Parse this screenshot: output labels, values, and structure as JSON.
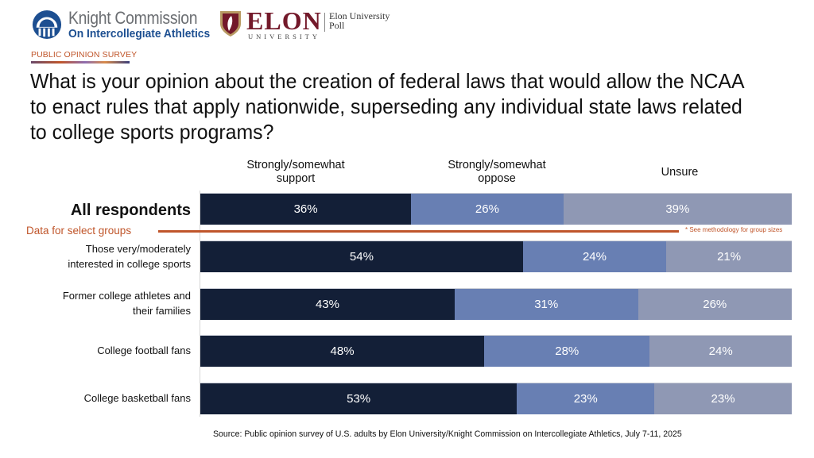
{
  "header": {
    "knight_logo": {
      "icon": "capitol-dome-icon",
      "name": "Knight Commission",
      "subtitle": "On Intercollegiate Athletics"
    },
    "elon_logo": {
      "icon": "elon-shield-icon",
      "wordmark": "ELON",
      "sub": "UNIVERSITY",
      "poll_line1": "Elon University",
      "poll_line2": "Poll"
    },
    "kicker": "PUBLIC OPINION SURVEY"
  },
  "colors": {
    "support": "#131f37",
    "oppose": "#687fb3",
    "unsure": "#8f98b4",
    "accent": "#c0562b"
  },
  "select_groups_label": "Data for select groups",
  "methodology_note": "* See methodology for group sizes",
  "source": "Source: Public opinion survey of U.S. adults by Elon University/Knight Commission on Intercollegiate Athletics, July 7-11, 2025",
  "chart_data": {
    "type": "bar",
    "orientation": "horizontal",
    "stacked": true,
    "title": "What is your opinion about the creation of federal laws that would allow the NCAA to enact rules that apply nationwide, superseding any individual state laws related to college sports programs?",
    "xlabel": "",
    "ylabel": "",
    "unit": "%",
    "grid": false,
    "legend_position": "top",
    "categories": [
      "All respondents",
      "Those very/moderately interested in college sports",
      "Former college athletes and their families",
      "College football fans",
      "College basketball fans"
    ],
    "category_display": [
      [
        "All respondents"
      ],
      [
        "Those very/moderately",
        "interested in college sports"
      ],
      [
        "Former college athletes and",
        "their families"
      ],
      [
        "College football fans"
      ],
      [
        "College basketball fans"
      ]
    ],
    "series": [
      {
        "name": "Strongly/somewhat support",
        "name_lines": [
          "Strongly/somewhat",
          "support"
        ],
        "values": [
          36,
          54,
          43,
          48,
          53
        ]
      },
      {
        "name": "Strongly/somewhat oppose",
        "name_lines": [
          "Strongly/somewhat",
          "oppose"
        ],
        "values": [
          26,
          24,
          31,
          28,
          23
        ]
      },
      {
        "name": "Unsure",
        "name_lines": [
          "Unsure"
        ],
        "values": [
          39,
          21,
          26,
          24,
          23
        ]
      }
    ],
    "data_labels": [
      [
        "36%",
        "26%",
        "39%"
      ],
      [
        "54%",
        "24%",
        "21%"
      ],
      [
        "43%",
        "31%",
        "26%"
      ],
      [
        "48%",
        "28%",
        "24%"
      ],
      [
        "53%",
        "23%",
        "23%"
      ]
    ]
  }
}
